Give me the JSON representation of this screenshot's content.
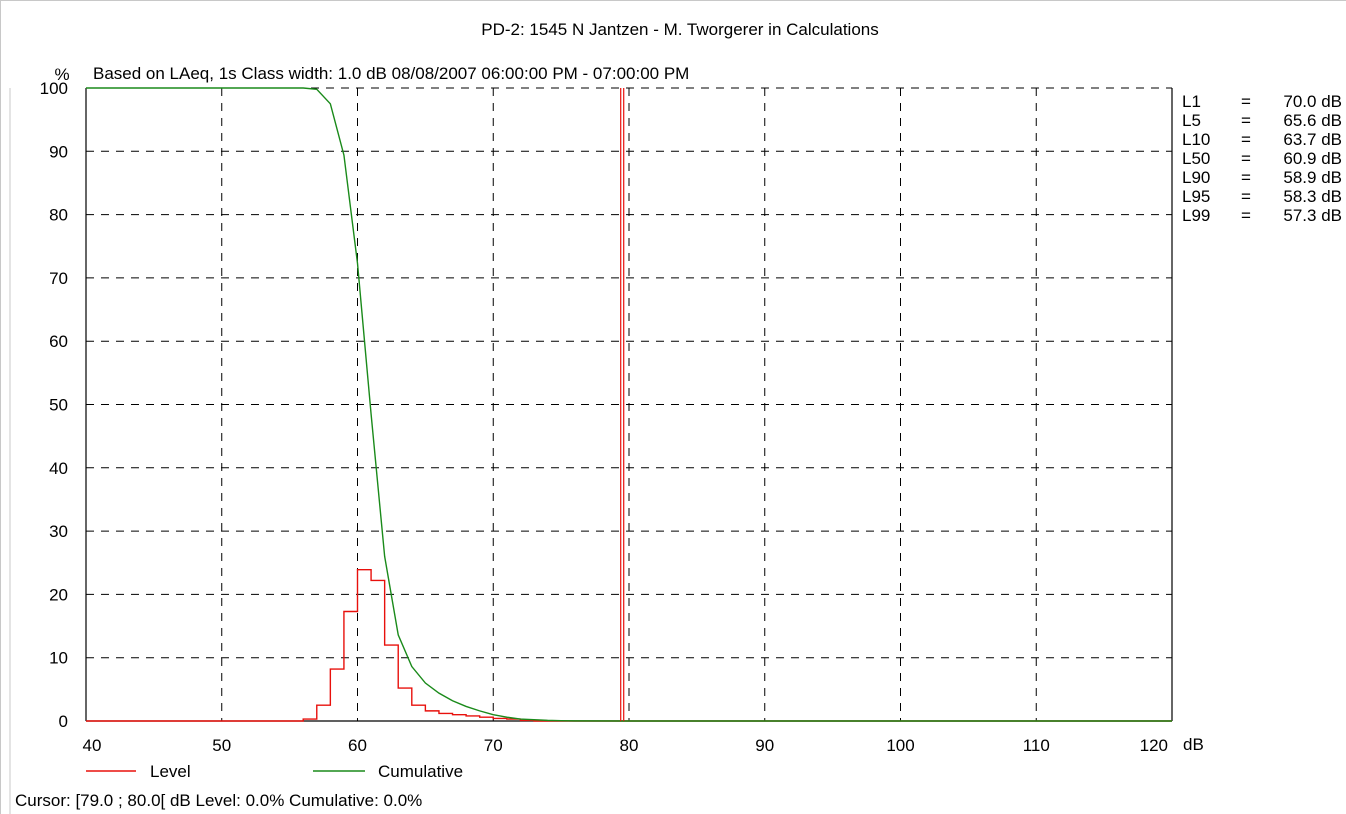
{
  "chart_data": {
    "type": "line",
    "title": "PD-2:  1545 N Jantzen - M. Tworgerer in Calculations",
    "subtitle": "Based on LAeq, 1s   Class width: 1.0 dB  08/08/2007 06:00:00 PM - 07:00:00 PM",
    "ylabel": "%",
    "xlabel": "dB",
    "xlim": [
      40,
      120
    ],
    "ylim": [
      0,
      100
    ],
    "xticks": [
      40,
      50,
      60,
      70,
      80,
      90,
      100,
      110,
      120
    ],
    "yticks": [
      0,
      10,
      20,
      30,
      40,
      50,
      60,
      70,
      80,
      90,
      100
    ],
    "grid": true,
    "level_histogram": {
      "name": "Level",
      "color": "#e8100c",
      "bin_starts": [
        56,
        57,
        58,
        59,
        60,
        61,
        62,
        63,
        64,
        65,
        66,
        67,
        68,
        69,
        70,
        71,
        72
      ],
      "values": [
        0.3,
        2.5,
        8.2,
        17.3,
        23.9,
        22.2,
        12.0,
        5.2,
        2.5,
        1.6,
        1.2,
        1.0,
        0.8,
        0.6,
        0.4,
        0.3,
        0.1
      ]
    },
    "cumulative": {
      "name": "Cumulative",
      "color": "#1a8a1a",
      "x": [
        40,
        56,
        57,
        58,
        59,
        60,
        61,
        62,
        63,
        64,
        65,
        66,
        67,
        68,
        69,
        70,
        71,
        72,
        73,
        74,
        75,
        76,
        80,
        120
      ],
      "y": [
        100,
        100,
        99.8,
        97.5,
        89.4,
        72.3,
        48.5,
        26.0,
        13.6,
        8.6,
        6.0,
        4.4,
        3.2,
        2.3,
        1.6,
        1.0,
        0.6,
        0.3,
        0.2,
        0.1,
        0.05,
        0.02,
        0,
        0
      ]
    },
    "cursor": {
      "x": 79.5,
      "color": "#e8100c"
    },
    "stats": [
      {
        "label": "L1",
        "eq": "=",
        "value": "70.0 dB"
      },
      {
        "label": "L5",
        "eq": "=",
        "value": "65.6 dB"
      },
      {
        "label": "L10",
        "eq": "=",
        "value": "63.7 dB"
      },
      {
        "label": "L50",
        "eq": "=",
        "value": "60.9 dB"
      },
      {
        "label": "L90",
        "eq": "=",
        "value": "58.9 dB"
      },
      {
        "label": "L95",
        "eq": "=",
        "value": "58.3 dB"
      },
      {
        "label": "L99",
        "eq": "=",
        "value": "57.3 dB"
      }
    ],
    "legend": [
      {
        "name": "Level",
        "color": "#e8100c"
      },
      {
        "name": "Cumulative",
        "color": "#1a8a1a"
      }
    ]
  },
  "status": {
    "cursor_text": "Cursor: [79.0 ; 80.0[ dB   Level: 0.0%   Cumulative: 0.0%"
  }
}
